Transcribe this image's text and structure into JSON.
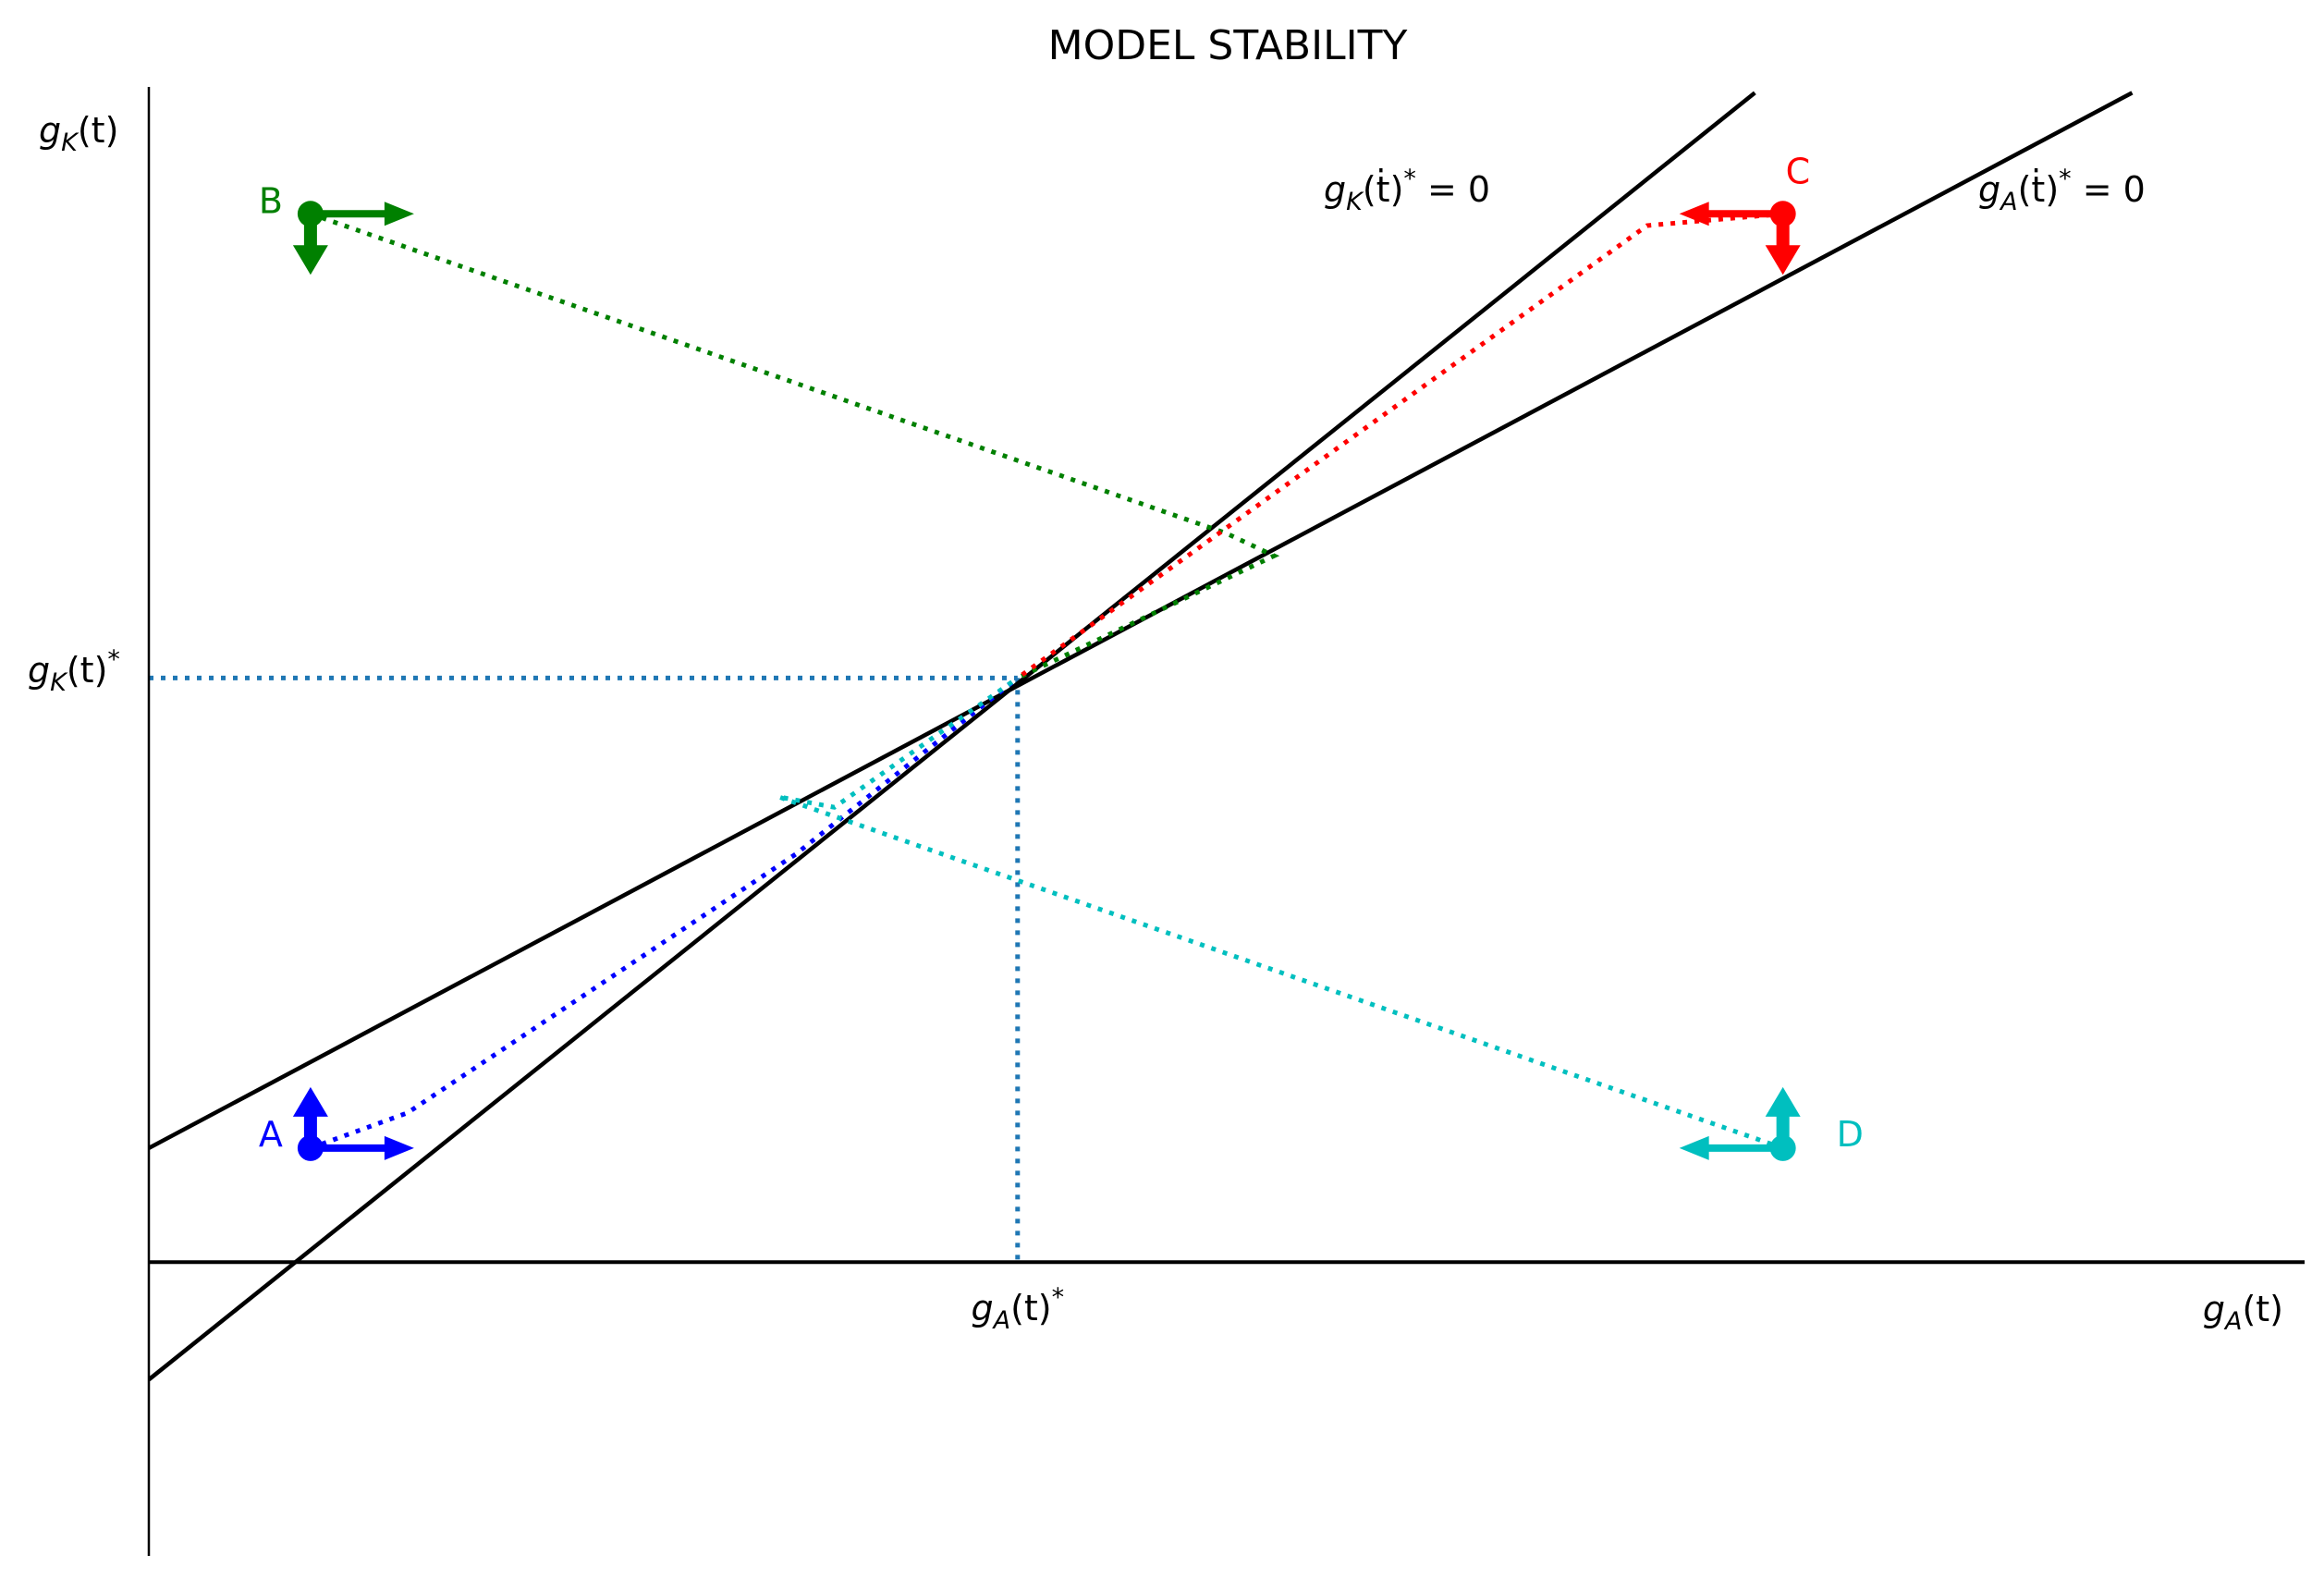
{
  "chart_data": {
    "type": "line",
    "title": "MODEL STABILITY",
    "xlabel": "g_A(t)",
    "ylabel": "g_K(t)",
    "xlim": [
      0,
      10
    ],
    "ylim": [
      -2.5,
      10
    ],
    "grid": false,
    "axes_lines": [
      {
        "name": "x-axis",
        "y": 0
      },
      {
        "name": "y-axis",
        "x": 0
      }
    ],
    "equilibrium": {
      "x": 4.03,
      "y": 4.97
    },
    "equilibrium_labels": {
      "x": "g_A(t)*",
      "y": "g_K(t)*"
    },
    "nullclines": [
      {
        "name": "gK_dot_zero",
        "label": "g_K(t)̇* = 0",
        "x": [
          0,
          7.45
        ],
        "y": [
          -1.0,
          9.95
        ]
      },
      {
        "name": "gA_dot_zero",
        "label": "g_A(t)̇* = 0",
        "x": [
          0,
          9.2
        ],
        "y": [
          0.97,
          9.95
        ]
      }
    ],
    "trajectories": [
      {
        "label": "A",
        "color": "#0000ff",
        "start": [
          0.75,
          0.97
        ],
        "arrows": [
          "up",
          "right"
        ],
        "path": [
          [
            0.75,
            0.97
          ],
          [
            1.2,
            1.27
          ],
          [
            3.0,
            3.47
          ],
          [
            4.03,
            4.97
          ]
        ]
      },
      {
        "label": "B",
        "color": "#008000",
        "start": [
          0.75,
          8.92
        ],
        "arrows": [
          "down",
          "right"
        ],
        "path": [
          [
            0.75,
            8.92
          ],
          [
            5.0,
            6.2
          ],
          [
            5.22,
            6.01
          ],
          [
            4.03,
            4.97
          ]
        ]
      },
      {
        "label": "C",
        "color": "#ff0000",
        "start": [
          7.58,
          8.92
        ],
        "arrows": [
          "down",
          "left"
        ],
        "path": [
          [
            7.58,
            8.92
          ],
          [
            6.95,
            8.82
          ],
          [
            4.03,
            4.97
          ]
        ]
      },
      {
        "label": "D",
        "color": "#00bfbf",
        "start": [
          7.58,
          0.97
        ],
        "arrows": [
          "up",
          "left"
        ],
        "path": [
          [
            7.58,
            0.97
          ],
          [
            2.92,
            3.96
          ],
          [
            3.18,
            3.87
          ],
          [
            4.03,
            4.97
          ]
        ]
      }
    ]
  }
}
